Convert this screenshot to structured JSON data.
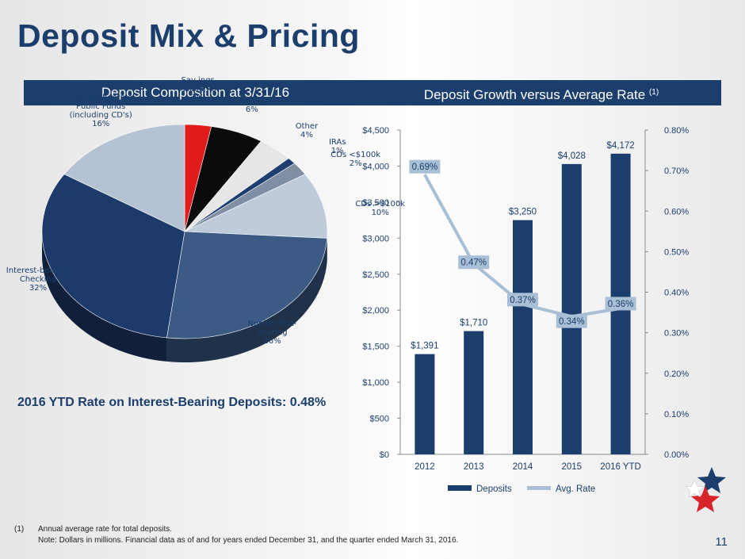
{
  "title": "Deposit Mix & Pricing",
  "left_header": "Deposit Composition at 3/31/16",
  "right_header": "Deposit Growth versus Average Rate",
  "right_header_sup": "(1)",
  "rate_note": "2016 YTD Rate on Interest-Bearing Deposits: 0.48%",
  "footnote_marker": "(1)",
  "footnote_line1": "Annual average rate for total deposits.",
  "footnote_line2": "Note: Dollars in millions. Financial data as of and for years ended December 31, and the quarter ended March 31, 2016.",
  "page_number": "11",
  "colors": {
    "navy": "#1b3e6d",
    "light_blue": "#a9bfd6"
  },
  "chart_data": [
    {
      "type": "pie",
      "slices": [
        {
          "label": "Savings Accounts",
          "percent": 3,
          "color": "#e01b1b",
          "text": "Sav ings\nAccounts\n3%"
        },
        {
          "label": "MMAs",
          "percent": 6,
          "color": "#0b0b0b",
          "text": "MMAs\n6%"
        },
        {
          "label": "Other",
          "percent": 4,
          "color": "#e6e6e6",
          "text": "Other\n4%"
        },
        {
          "label": "IRAs",
          "percent": 1,
          "color": "#1f3f70",
          "text": "IRAs\n1%"
        },
        {
          "label": "CDs <$100k",
          "percent": 2,
          "color": "#7f8ea3",
          "text": "CDs <$100k\n2%"
        },
        {
          "label": "CDs >$100k",
          "percent": 10,
          "color": "#bfcbdb",
          "text": "CDs >$100k\n10%"
        },
        {
          "label": "Noninterest-bearing",
          "percent": 26,
          "color": "#3b5a84",
          "text": "Noninterest-\nbearing\n26%"
        },
        {
          "label": "Interest-bearing Checking",
          "percent": 32,
          "color": "#1d3b6a",
          "text": "Interest-bearing\nChecking\n32%"
        },
        {
          "label": "Interest-bearing Public Funds (including CD's)",
          "percent": 16,
          "color": "#b4c3d4",
          "text": "Interest-bearing\nPublic Funds\n(including CD's)\n16%"
        }
      ]
    },
    {
      "type": "bar",
      "categories": [
        "2012",
        "2013",
        "2014",
        "2015",
        "2016 YTD"
      ],
      "series": [
        {
          "name": "Deposits",
          "values": [
            1391,
            1710,
            3250,
            4028,
            4172
          ],
          "labels": [
            "$1,391",
            "$1,710",
            "$3,250",
            "$4,028",
            "$4,172"
          ],
          "color": "#1b3e6d"
        },
        {
          "name": "Avg. Rate",
          "type": "line",
          "axis": "right",
          "values": [
            0.69,
            0.47,
            0.37,
            0.34,
            0.36
          ],
          "labels": [
            "0.69%",
            "0.47%",
            "0.37%",
            "0.34%",
            "0.36%"
          ],
          "color": "#a9bfd6"
        }
      ],
      "y_left": {
        "min": 0,
        "max": 4500,
        "ticks": [
          "$0",
          "$500",
          "$1,000",
          "$1,500",
          "$2,000",
          "$2,500",
          "$3,000",
          "$3,500",
          "$4,000",
          "$4,500"
        ]
      },
      "y_right": {
        "min": 0,
        "max": 0.8,
        "ticks": [
          "0.00%",
          "0.10%",
          "0.20%",
          "0.30%",
          "0.40%",
          "0.50%",
          "0.60%",
          "0.70%",
          "0.80%"
        ]
      },
      "legend_position": "bottom"
    }
  ]
}
